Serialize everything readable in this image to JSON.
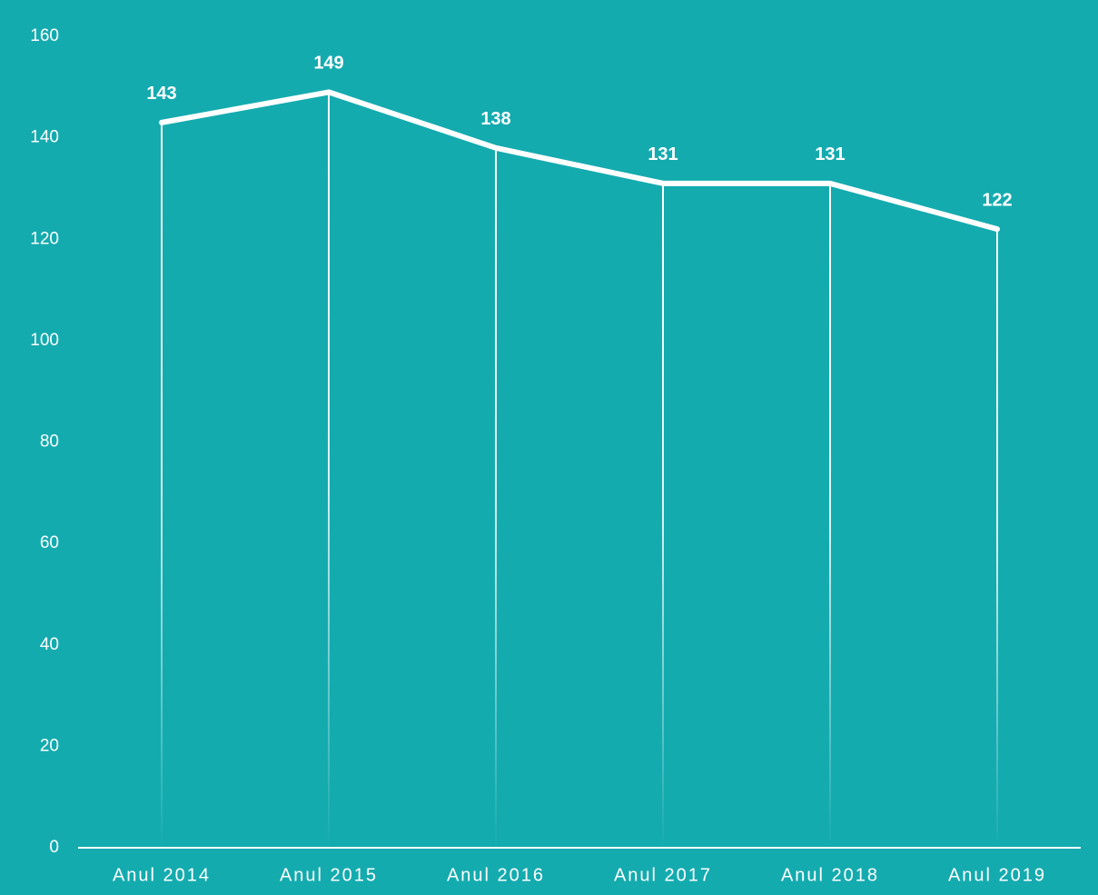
{
  "chart_data": {
    "type": "line",
    "categories": [
      "Anul 2014",
      "Anul 2015",
      "Anul 2016",
      "Anul 2017",
      "Anul 2018",
      "Anul 2019"
    ],
    "values": [
      143,
      149,
      138,
      131,
      131,
      122
    ],
    "color": "#ffffff",
    "background": "#14abaf",
    "ylim": [
      0,
      160
    ],
    "yticks": [
      0,
      20,
      40,
      60,
      80,
      100,
      120,
      140,
      160
    ],
    "grid": false
  }
}
